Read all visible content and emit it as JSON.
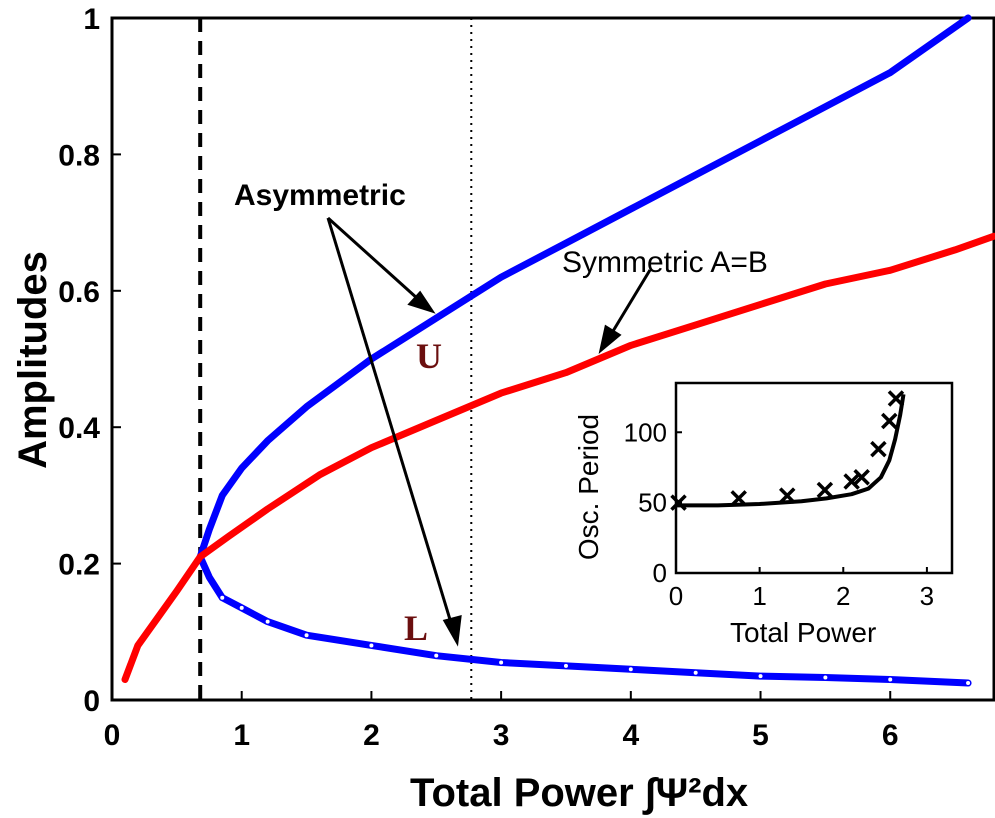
{
  "chart_data": [
    {
      "type": "line",
      "xlabel": "Total Power ∫Ψ²dx",
      "ylabel": "Amplitudes",
      "xlim": [
        0,
        6.8
      ],
      "ylim": [
        0,
        1
      ],
      "xticks": [
        "0",
        "1",
        "2",
        "3",
        "4",
        "5",
        "6"
      ],
      "yticks": [
        "0",
        "0.2",
        "0.4",
        "0.6",
        "0.8",
        "1"
      ],
      "grid": false,
      "colors": {
        "symmetric": "#ff0000",
        "asymmetric": "#0000ff",
        "marker_label": "#6b0f0f"
      },
      "series": [
        {
          "name": "Symmetric A=B",
          "x": [
            0.1,
            0.2,
            0.35,
            0.5,
            0.68,
            0.9,
            1.2,
            1.6,
            2.0,
            2.5,
            3.0,
            3.5,
            4.0,
            4.5,
            5.0,
            5.5,
            6.0,
            6.5,
            6.8
          ],
          "y": [
            0.03,
            0.08,
            0.12,
            0.16,
            0.21,
            0.24,
            0.28,
            0.33,
            0.37,
            0.41,
            0.45,
            0.48,
            0.52,
            0.55,
            0.58,
            0.61,
            0.63,
            0.66,
            0.68
          ]
        },
        {
          "name": "U",
          "x": [
            0.68,
            0.75,
            0.85,
            1.0,
            1.2,
            1.5,
            2.0,
            2.5,
            3.0,
            3.5,
            4.0,
            4.5,
            5.0,
            5.5,
            6.0,
            6.6
          ],
          "y": [
            0.21,
            0.25,
            0.3,
            0.34,
            0.38,
            0.43,
            0.5,
            0.56,
            0.62,
            0.67,
            0.72,
            0.77,
            0.82,
            0.87,
            0.92,
            1.0
          ]
        },
        {
          "name": "L",
          "x": [
            0.68,
            0.75,
            0.85,
            1.0,
            1.2,
            1.5,
            2.0,
            2.5,
            3.0,
            3.5,
            4.0,
            4.5,
            5.0,
            5.5,
            6.0,
            6.6
          ],
          "y": [
            0.21,
            0.18,
            0.15,
            0.135,
            0.115,
            0.095,
            0.08,
            0.065,
            0.055,
            0.05,
            0.045,
            0.04,
            0.035,
            0.033,
            0.03,
            0.025
          ]
        }
      ],
      "vlines": [
        {
          "x": 0.68,
          "style": "dashed"
        },
        {
          "x": 2.77,
          "style": "dotted"
        }
      ],
      "annotations": [
        {
          "text": "Asymmetric"
        },
        {
          "text": "Symmetric A=B"
        },
        {
          "text": "U"
        },
        {
          "text": "L"
        }
      ]
    },
    {
      "type": "line",
      "xlabel": "Total Power",
      "ylabel": "Osc. Period",
      "xlim": [
        0,
        3.3
      ],
      "ylim": [
        0,
        135
      ],
      "xticks": [
        "0",
        "1",
        "2",
        "3"
      ],
      "yticks": [
        "0",
        "50",
        "100"
      ],
      "series": [
        {
          "name": "curve",
          "x": [
            0,
            0.5,
            1.0,
            1.5,
            1.8,
            2.1,
            2.3,
            2.45,
            2.55,
            2.62,
            2.68,
            2.72
          ],
          "y": [
            48,
            48,
            49,
            51,
            53,
            56,
            60,
            68,
            80,
            95,
            112,
            127
          ]
        },
        {
          "name": "markers",
          "marker": "x",
          "x": [
            0.03,
            0.75,
            1.33,
            1.78,
            2.1,
            2.22,
            2.42,
            2.55,
            2.63
          ],
          "y": [
            50,
            53,
            55,
            59,
            65,
            68,
            88,
            108,
            124
          ]
        }
      ]
    }
  ]
}
